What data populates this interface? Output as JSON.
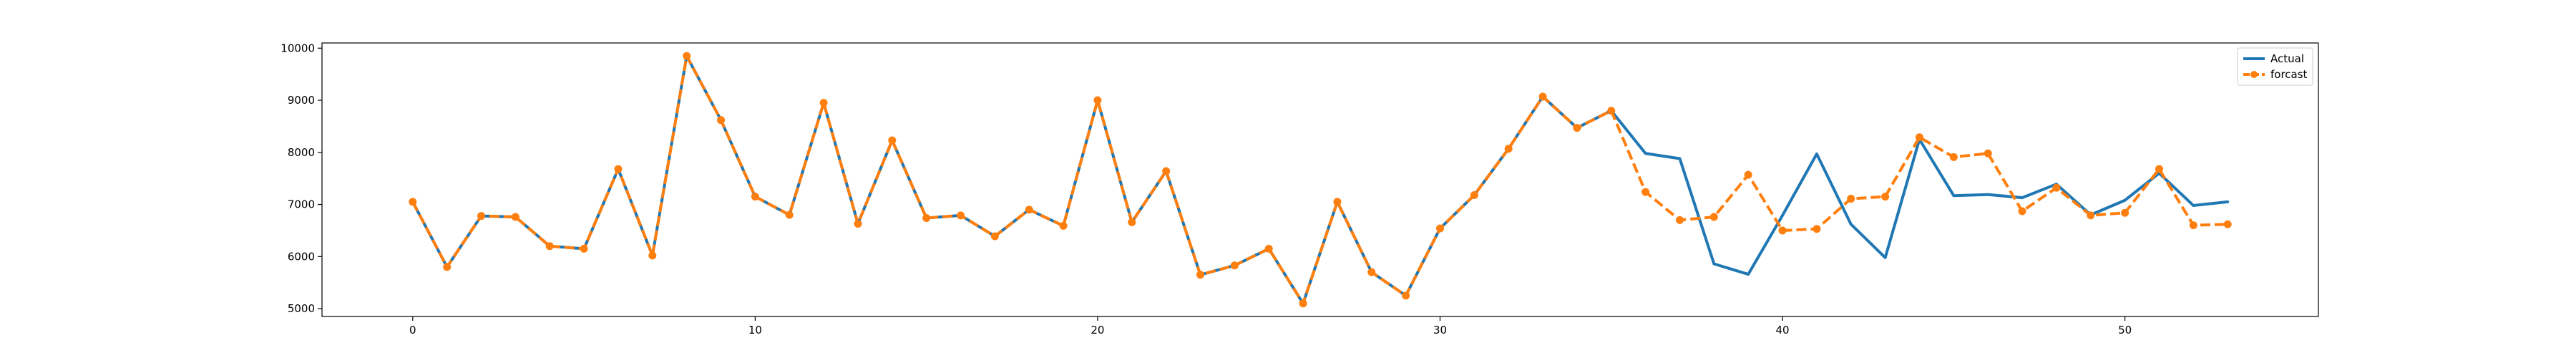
{
  "chart_data": {
    "type": "line",
    "title": "",
    "xlabel": "",
    "ylabel": "",
    "xlim": [
      -2.65,
      55.65
    ],
    "ylim": [
      4850,
      10100
    ],
    "xticks": [
      0,
      10,
      20,
      30,
      40,
      50
    ],
    "yticks": [
      5000,
      6000,
      7000,
      8000,
      9000,
      10000
    ],
    "grid": false,
    "legend_position": "top-right",
    "x": [
      0,
      1,
      2,
      3,
      4,
      5,
      6,
      7,
      8,
      9,
      10,
      11,
      12,
      13,
      14,
      15,
      16,
      17,
      18,
      19,
      20,
      21,
      22,
      23,
      24,
      25,
      26,
      27,
      28,
      29,
      30,
      31,
      32,
      33,
      34,
      35,
      36,
      37,
      38,
      39,
      40,
      41,
      42,
      43,
      44,
      45,
      46,
      47,
      48,
      49,
      50,
      51,
      52,
      53
    ],
    "series": [
      {
        "name": "Actual",
        "color": "#1f77b4",
        "style": "solid",
        "marker": "none",
        "values": [
          7050,
          5800,
          6780,
          6760,
          6200,
          6150,
          7680,
          6020,
          9850,
          8620,
          7150,
          6800,
          8950,
          6630,
          8230,
          6740,
          6790,
          6390,
          6900,
          6590,
          9000,
          6660,
          7640,
          5650,
          5830,
          6150,
          5100,
          7050,
          5700,
          5250,
          6540,
          7180,
          8070,
          9070,
          8470,
          8800,
          7980,
          7880,
          5860,
          5660,
          6790,
          7970,
          6620,
          5980,
          8250,
          7170,
          7190,
          7130,
          7390,
          6800,
          7080,
          7600,
          6980,
          7050
        ]
      },
      {
        "name": "forcast",
        "color": "#ff7f0e",
        "style": "dashed",
        "marker": "circle",
        "values": [
          7050,
          5800,
          6780,
          6760,
          6200,
          6150,
          7680,
          6020,
          9850,
          8620,
          7150,
          6800,
          8950,
          6630,
          8230,
          6740,
          6790,
          6390,
          6900,
          6590,
          9000,
          6660,
          7640,
          5650,
          5830,
          6150,
          5100,
          7050,
          5700,
          5250,
          6540,
          7180,
          8070,
          9070,
          8470,
          8800,
          7240,
          6700,
          6760,
          7570,
          6500,
          6530,
          7110,
          7150,
          8290,
          7910,
          7980,
          6870,
          7320,
          6790,
          6840,
          7680,
          6600,
          6620
        ]
      }
    ]
  }
}
